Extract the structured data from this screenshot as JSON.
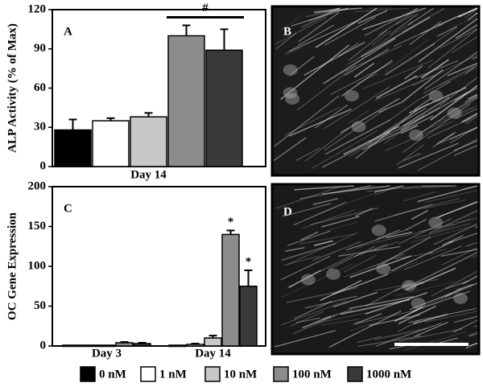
{
  "chart_data": [
    {
      "type": "bar",
      "panel_label": "A",
      "ylabel": "ALP Activity (% of Max)",
      "categories": [
        "Day 14"
      ],
      "series": [
        {
          "name": "0 nM",
          "color": "#000000",
          "values": [
            28
          ],
          "errors": [
            8
          ]
        },
        {
          "name": "1 nM",
          "color": "#ffffff",
          "values": [
            35
          ],
          "errors": [
            2
          ]
        },
        {
          "name": "10 nM",
          "color": "#c8c8c8",
          "values": [
            38
          ],
          "errors": [
            3
          ]
        },
        {
          "name": "100 nM",
          "color": "#8c8c8c",
          "values": [
            100
          ],
          "errors": [
            8
          ]
        },
        {
          "name": "1000 nM",
          "color": "#3a3a3a",
          "values": [
            89
          ],
          "errors": [
            16
          ]
        }
      ],
      "ylim": [
        0,
        120
      ],
      "yticks": [
        0,
        30,
        60,
        90,
        120
      ],
      "annotations": [
        "#"
      ]
    },
    {
      "type": "bar",
      "panel_label": "C",
      "ylabel": "OC Gene Expression",
      "categories": [
        "Day 3",
        "Day 14"
      ],
      "series": [
        {
          "color": "#000000",
          "values": [
            1,
            1
          ],
          "errors": [
            0,
            0
          ]
        },
        {
          "color": "#ffffff",
          "values": [
            1,
            2
          ],
          "errors": [
            0,
            1
          ]
        },
        {
          "color": "#c8c8c8",
          "values": [
            1,
            10
          ],
          "errors": [
            0,
            3
          ]
        },
        {
          "color": "#8c8c8c",
          "values": [
            4,
            140
          ],
          "errors": [
            1,
            5
          ]
        },
        {
          "color": "#3a3a3a",
          "values": [
            3,
            75
          ],
          "errors": [
            1,
            20
          ]
        }
      ],
      "ylim": [
        0,
        200
      ],
      "yticks": [
        0,
        50,
        100,
        150,
        200
      ],
      "annotations": [
        "*",
        "*"
      ]
    }
  ],
  "images": [
    {
      "panel_label": "B"
    },
    {
      "panel_label": "D"
    }
  ]
}
